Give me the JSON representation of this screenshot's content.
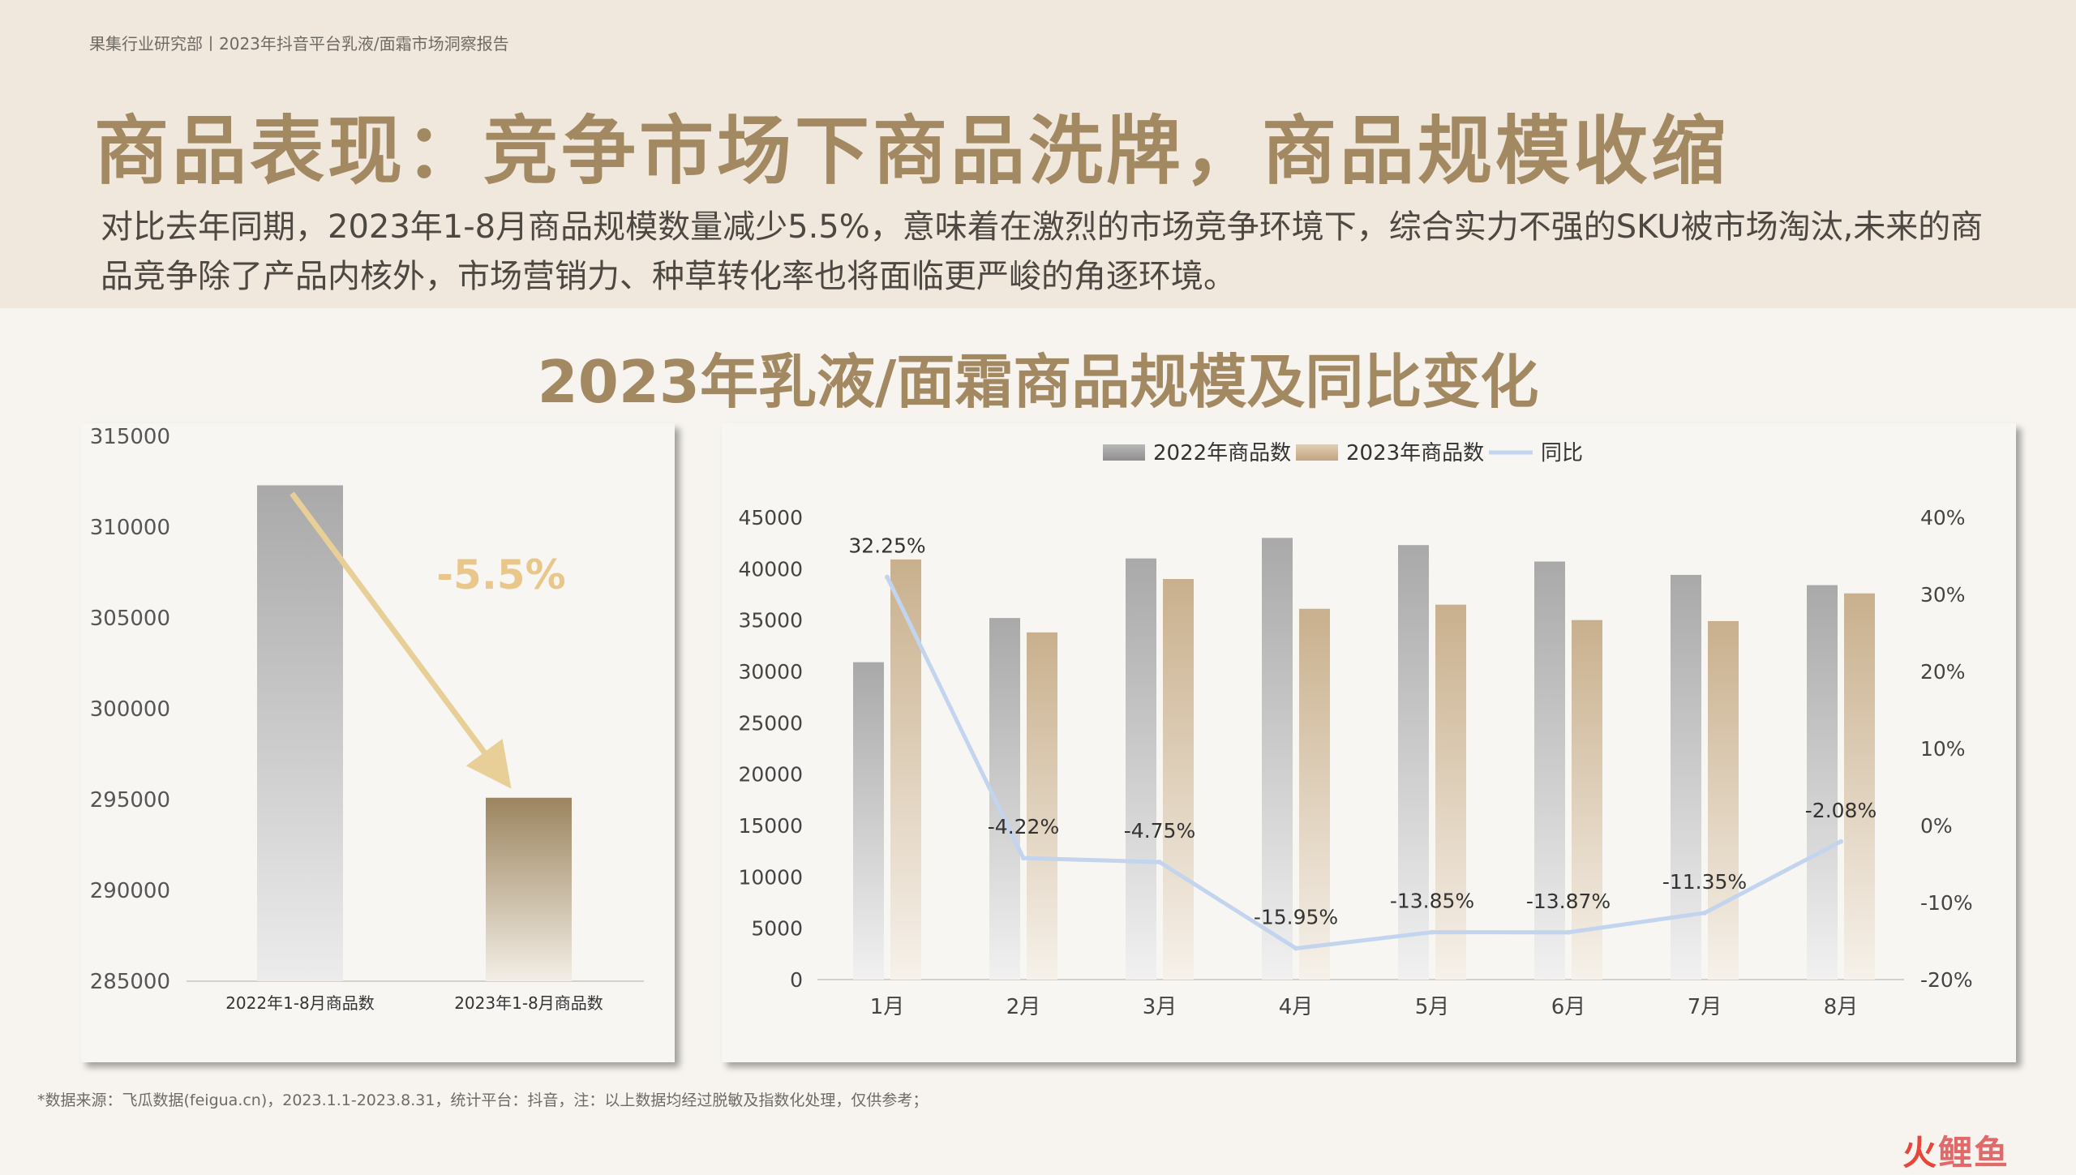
{
  "header": {
    "breadcrumb": "果集行业研究部丨2023年抖音平台乳液/面霜市场洞察报告",
    "title": "商品表现：竞争市场下商品洗牌，商品规模收缩",
    "subtitle": "对比去年同期，2023年1-8月商品规模数量减少5.5%，意味着在激烈的市场竞争环境下，综合实力不强的SKU被市场淘汰,未来的商品竞争除了产品内核外，市场营销力、种草转化率也将面临更严峻的角逐环境。"
  },
  "chart_title": "2023年乳液/面霜商品规模及同比变化",
  "colors": {
    "accent": "#a38962",
    "bar_2022": "#a9a9a9",
    "bar_2023": "#c9b08d",
    "bar_2023_left": "#9c855f",
    "line": "#c3d4ee",
    "arrow": "#e8cf98",
    "change_label": "#e9c68a"
  },
  "chart_data": [
    {
      "type": "bar",
      "categories": [
        "2022年1-8月商品数",
        "2023年1-8月商品数"
      ],
      "values": [
        312300,
        295100
      ],
      "ylim": [
        285000,
        315000
      ],
      "yticks": [
        "315000",
        "310000",
        "305000",
        "300000",
        "295000",
        "290000",
        "285000"
      ],
      "annotation": "-5.5%"
    },
    {
      "type": "bar",
      "categories": [
        "1月",
        "2月",
        "3月",
        "4月",
        "5月",
        "6月",
        "7月",
        "8月"
      ],
      "series": [
        {
          "name": "2022年商品数",
          "type": "bar",
          "values": [
            30900,
            35200,
            41000,
            43000,
            42300,
            40700,
            39400,
            38400
          ]
        },
        {
          "name": "2023年商品数",
          "type": "bar",
          "values": [
            40900,
            33800,
            39000,
            36100,
            36500,
            35000,
            34900,
            37600
          ]
        },
        {
          "name": "同比",
          "type": "line",
          "axis": "right",
          "values": [
            32.25,
            -4.22,
            -4.75,
            -15.95,
            -13.85,
            -13.87,
            -11.35,
            -2.08
          ],
          "labels": [
            "32.25%",
            "-4.22%",
            "-4.75%",
            "-15.95%",
            "-13.85%",
            "-13.87%",
            "-11.35%",
            "-2.08%"
          ]
        }
      ],
      "ylim": [
        0,
        45000
      ],
      "yticks": [
        "45000",
        "40000",
        "35000",
        "30000",
        "25000",
        "20000",
        "15000",
        "10000",
        "5000",
        "0"
      ],
      "y2lim": [
        -20,
        40
      ],
      "y2ticks": [
        "40%",
        "30%",
        "20%",
        "10%",
        "0%",
        "-10%",
        "-20%"
      ],
      "legend": "top"
    }
  ],
  "footnote": "*数据来源：飞瓜数据(feigua.cn)，2023.1.1-2023.8.31，统计平台：抖音，注：以上数据均经过脱敏及指数化处理，仅供参考；",
  "logo": {
    "part1": "火",
    "part2": "鲤鱼"
  }
}
